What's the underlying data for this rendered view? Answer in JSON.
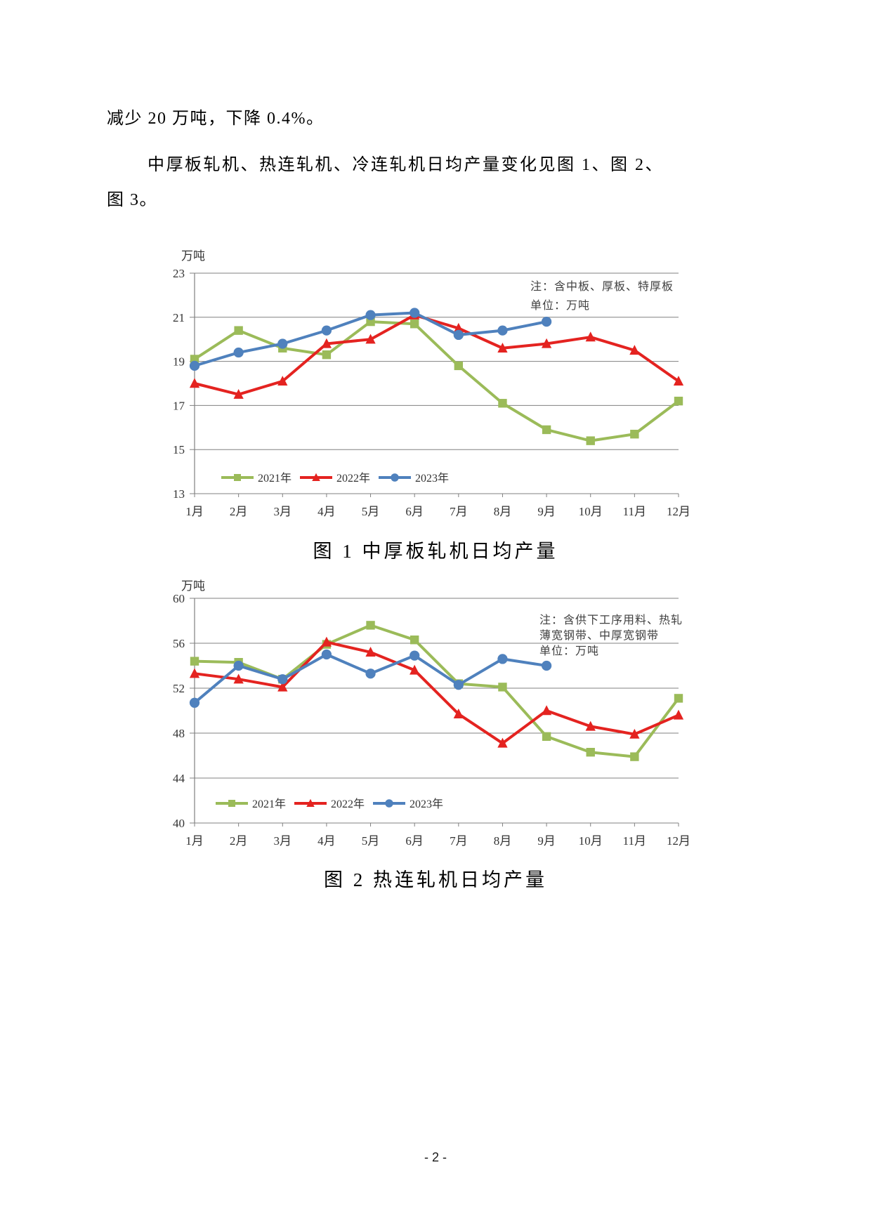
{
  "page": {
    "footer": "- 2 -"
  },
  "paragraphs": {
    "p1": "减少 20 万吨，下降 0.4%。",
    "p2_line1": "中厚板轧机、热连轧机、冷连轧机日均产量变化见图 1、图 2、",
    "p2_line2": "图 3。"
  },
  "colors": {
    "series_2021": "#9bbb59",
    "series_2022": "#e42320",
    "series_2023": "#4f81bd",
    "grid": "#808080",
    "axis_line": "#808080",
    "axis_text": "#333333",
    "note_text": "#404040"
  },
  "chart_data": [
    {
      "type": "line",
      "title": "图 1  中厚板轧机日均产量",
      "unit_label": "万吨",
      "note_lines": [
        "注：含中板、厚板、特厚板",
        "单位：万吨"
      ],
      "categories": [
        "1月",
        "2月",
        "3月",
        "4月",
        "5月",
        "6月",
        "7月",
        "8月",
        "9月",
        "10月",
        "11月",
        "12月"
      ],
      "ylim": [
        13,
        23
      ],
      "yticks": [
        13,
        15,
        17,
        19,
        21,
        23
      ],
      "grid": true,
      "legend_position": "inside-bottom-left",
      "series": [
        {
          "name": "2021年",
          "marker": "square",
          "color_key": "series_2021",
          "values": [
            19.1,
            20.4,
            19.6,
            19.3,
            20.8,
            20.7,
            18.8,
            17.1,
            15.9,
            15.4,
            15.7,
            17.2
          ]
        },
        {
          "name": "2022年",
          "marker": "triangle",
          "color_key": "series_2022",
          "values": [
            18.0,
            17.5,
            18.1,
            19.8,
            20.0,
            21.1,
            20.5,
            19.6,
            19.8,
            20.1,
            19.5,
            18.1
          ]
        },
        {
          "name": "2023年",
          "marker": "circle",
          "color_key": "series_2023",
          "values": [
            18.8,
            19.4,
            19.8,
            20.4,
            21.1,
            21.2,
            20.2,
            20.4,
            20.8
          ]
        }
      ]
    },
    {
      "type": "line",
      "title": "图 2  热连轧机日均产量",
      "unit_label": "万吨",
      "note_lines": [
        "注：含供下工序用料、热轧",
        "薄宽钢带、中厚宽钢带",
        "单位：万吨"
      ],
      "categories": [
        "1月",
        "2月",
        "3月",
        "4月",
        "5月",
        "6月",
        "7月",
        "8月",
        "9月",
        "10月",
        "11月",
        "12月"
      ],
      "ylim": [
        40,
        60
      ],
      "yticks": [
        40,
        44,
        48,
        52,
        56,
        60
      ],
      "grid": true,
      "legend_position": "inside-bottom-left",
      "series": [
        {
          "name": "2021年",
          "marker": "square",
          "color_key": "series_2021",
          "values": [
            54.4,
            54.3,
            52.8,
            55.9,
            57.6,
            56.3,
            52.4,
            52.1,
            47.7,
            46.3,
            45.9,
            51.1
          ]
        },
        {
          "name": "2022年",
          "marker": "triangle",
          "color_key": "series_2022",
          "values": [
            53.3,
            52.8,
            52.1,
            56.1,
            55.2,
            53.6,
            49.7,
            47.1,
            50.0,
            48.6,
            47.9,
            49.6
          ]
        },
        {
          "name": "2023年",
          "marker": "circle",
          "color_key": "series_2023",
          "values": [
            50.7,
            54.0,
            52.8,
            55.0,
            53.3,
            54.9,
            52.3,
            54.6,
            54.0
          ]
        }
      ]
    }
  ]
}
